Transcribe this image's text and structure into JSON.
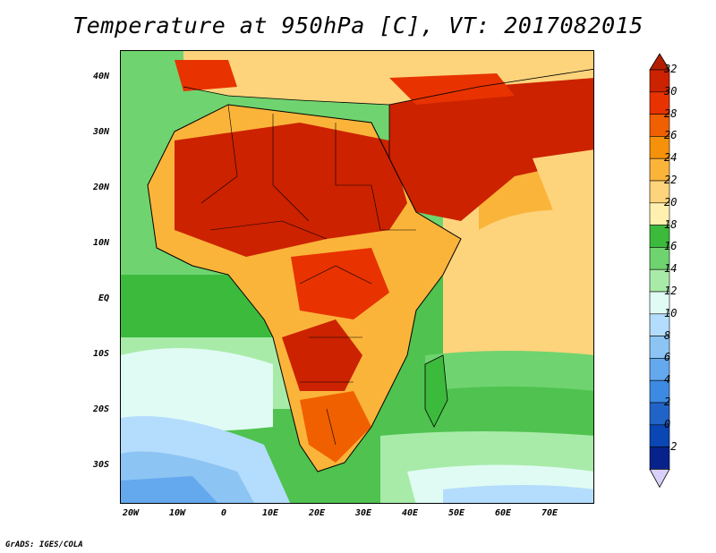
{
  "title": "Temperature at 950hPa [C], VT: 2017082015",
  "credit": "GrADS: IGES/COLA",
  "lat_labels": [
    "40N",
    "30N",
    "20N",
    "10N",
    "EQ",
    "10S",
    "20S",
    "30S"
  ],
  "lon_labels": [
    "20W",
    "10W",
    "0",
    "10E",
    "20E",
    "30E",
    "40E",
    "50E",
    "60E",
    "70E"
  ],
  "colorbar": {
    "labels": [
      "32",
      "30",
      "28",
      "26",
      "24",
      "22",
      "20",
      "18",
      "16",
      "14",
      "12",
      "10",
      "8",
      "6",
      "4",
      "2",
      "0",
      "-2"
    ],
    "colors": [
      "#cc2200",
      "#e83200",
      "#f06000",
      "#f5910a",
      "#fbb43a",
      "#fdd47c",
      "#fff0b0",
      "#3cba3c",
      "#6fd46f",
      "#a8eba8",
      "#e0fbf4",
      "#b4dcfc",
      "#8cc4f4",
      "#64a8ee",
      "#3c8ae2",
      "#2064c8",
      "#0a46b4",
      "#07228a"
    ],
    "top_arrow_color": "#b41e00",
    "bottom_arrow_color": "#d8d0f8"
  }
}
